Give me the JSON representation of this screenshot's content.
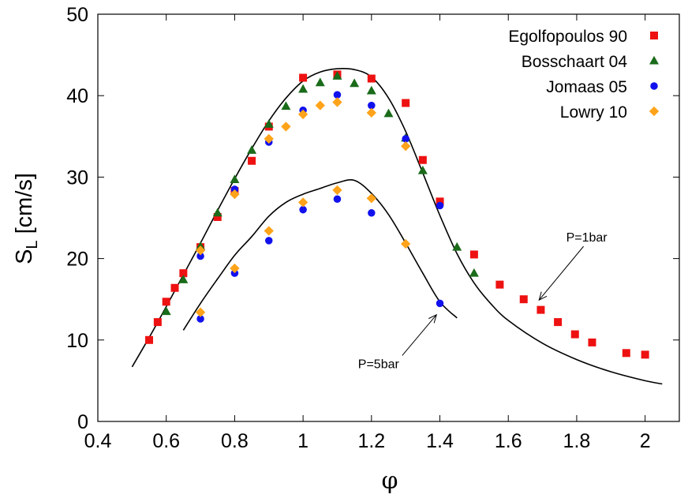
{
  "chart_data": {
    "type": "scatter",
    "title": "",
    "xlabel": "φ",
    "ylabel_main": "S",
    "ylabel_sub": "L",
    "ylabel_unit": " [cm/s]",
    "xlim": [
      0.4,
      2.1
    ],
    "ylim": [
      0,
      50
    ],
    "x_ticks": [
      0.4,
      0.6,
      0.8,
      1,
      1.2,
      1.4,
      1.6,
      1.8,
      2
    ],
    "x_tick_labels": [
      "0.4",
      "0.6",
      "0.8",
      "1",
      "1.2",
      "1.4",
      "1.6",
      "1.8",
      "2"
    ],
    "y_ticks": [
      0,
      10,
      20,
      30,
      40,
      50
    ],
    "y_tick_labels": [
      "0",
      "10",
      "20",
      "30",
      "40",
      "50"
    ],
    "grid": false,
    "legend_position": "top-right",
    "series": [
      {
        "name": "Egolfopoulos 90",
        "marker": "square",
        "color": "#ee1111",
        "x": [
          0.55,
          0.575,
          0.6,
          0.625,
          0.65,
          0.7,
          0.75,
          0.8,
          0.85,
          0.9,
          1.0,
          1.1,
          1.2,
          1.3,
          1.35,
          1.4,
          1.5,
          1.575,
          1.645,
          1.695,
          1.745,
          1.795,
          1.845,
          1.945,
          2.0
        ],
        "y": [
          10.0,
          12.2,
          14.7,
          16.4,
          18.2,
          21.4,
          25.1,
          28.3,
          32.0,
          36.2,
          42.2,
          42.6,
          42.1,
          39.1,
          32.1,
          27.0,
          20.5,
          16.8,
          15.0,
          13.7,
          12.2,
          10.7,
          9.7,
          8.4,
          8.2
        ]
      },
      {
        "name": "Bosschaart 04",
        "marker": "triangle",
        "color": "#1a6b1a",
        "x": [
          0.6,
          0.65,
          0.7,
          0.75,
          0.8,
          0.85,
          0.9,
          0.95,
          1.0,
          1.05,
          1.1,
          1.15,
          1.2,
          1.25,
          1.3,
          1.35,
          1.45,
          1.5
        ],
        "y": [
          13.5,
          17.4,
          21.5,
          25.6,
          29.7,
          33.3,
          36.5,
          38.7,
          40.8,
          41.6,
          42.4,
          41.5,
          40.6,
          37.8,
          34.8,
          30.8,
          21.4,
          18.2
        ]
      },
      {
        "name": "Jomaas 05",
        "marker": "circle",
        "color": "#1111ee",
        "x": [
          0.7,
          0.8,
          0.9,
          1.0,
          1.1,
          1.2,
          1.3,
          1.4,
          0.7,
          0.8,
          0.9,
          1.0,
          1.1,
          1.2,
          1.4
        ],
        "y": [
          20.3,
          28.5,
          34.3,
          38.2,
          40.1,
          38.8,
          34.7,
          26.5,
          12.6,
          18.2,
          22.2,
          26.0,
          27.3,
          25.6,
          14.5
        ]
      },
      {
        "name": "Lowry 10",
        "marker": "diamond",
        "color": "#ffa31a",
        "x": [
          0.7,
          0.8,
          0.9,
          0.95,
          1.0,
          1.05,
          1.1,
          1.2,
          1.3,
          0.7,
          0.8,
          0.9,
          1.0,
          1.1,
          1.2,
          1.3
        ],
        "y": [
          21.0,
          27.9,
          34.7,
          36.2,
          37.7,
          38.8,
          39.2,
          37.9,
          33.8,
          13.4,
          18.8,
          23.4,
          26.9,
          28.4,
          27.4,
          21.8
        ]
      }
    ],
    "model_curves": [
      {
        "pressure": "P=1bar",
        "x": [
          0.5,
          0.55,
          0.6,
          0.65,
          0.7,
          0.75,
          0.8,
          0.85,
          0.9,
          0.95,
          1.0,
          1.05,
          1.1,
          1.15,
          1.2,
          1.25,
          1.3,
          1.35,
          1.4,
          1.45,
          1.5,
          1.55,
          1.6,
          1.7,
          1.8,
          1.9,
          2.0,
          2.05
        ],
        "y": [
          6.7,
          10.3,
          14.1,
          18.0,
          21.9,
          25.9,
          29.8,
          33.5,
          36.9,
          39.7,
          41.8,
          42.9,
          43.3,
          43.2,
          42.3,
          39.7,
          35.6,
          30.5,
          25.3,
          20.6,
          17.0,
          14.4,
          12.4,
          9.6,
          7.6,
          6.1,
          5.0,
          4.6
        ]
      },
      {
        "pressure": "P=5bar",
        "x": [
          0.65,
          0.7,
          0.75,
          0.8,
          0.85,
          0.9,
          0.95,
          1.0,
          1.05,
          1.1,
          1.15,
          1.2,
          1.25,
          1.3,
          1.35,
          1.4,
          1.45
        ],
        "y": [
          11.2,
          14.5,
          17.5,
          20.4,
          22.7,
          25.2,
          26.9,
          27.9,
          28.6,
          29.3,
          29.6,
          28.0,
          25.4,
          21.9,
          18.2,
          14.7,
          12.7
        ]
      }
    ],
    "annotations": [
      {
        "text": "P=1bar",
        "arrow_from": [
          1.82,
          21.5
        ],
        "arrow_to": [
          1.69,
          14.9
        ]
      },
      {
        "text": "P=5bar",
        "arrow_from": [
          1.29,
          8.1
        ],
        "arrow_to": [
          1.39,
          13.1
        ]
      }
    ]
  }
}
